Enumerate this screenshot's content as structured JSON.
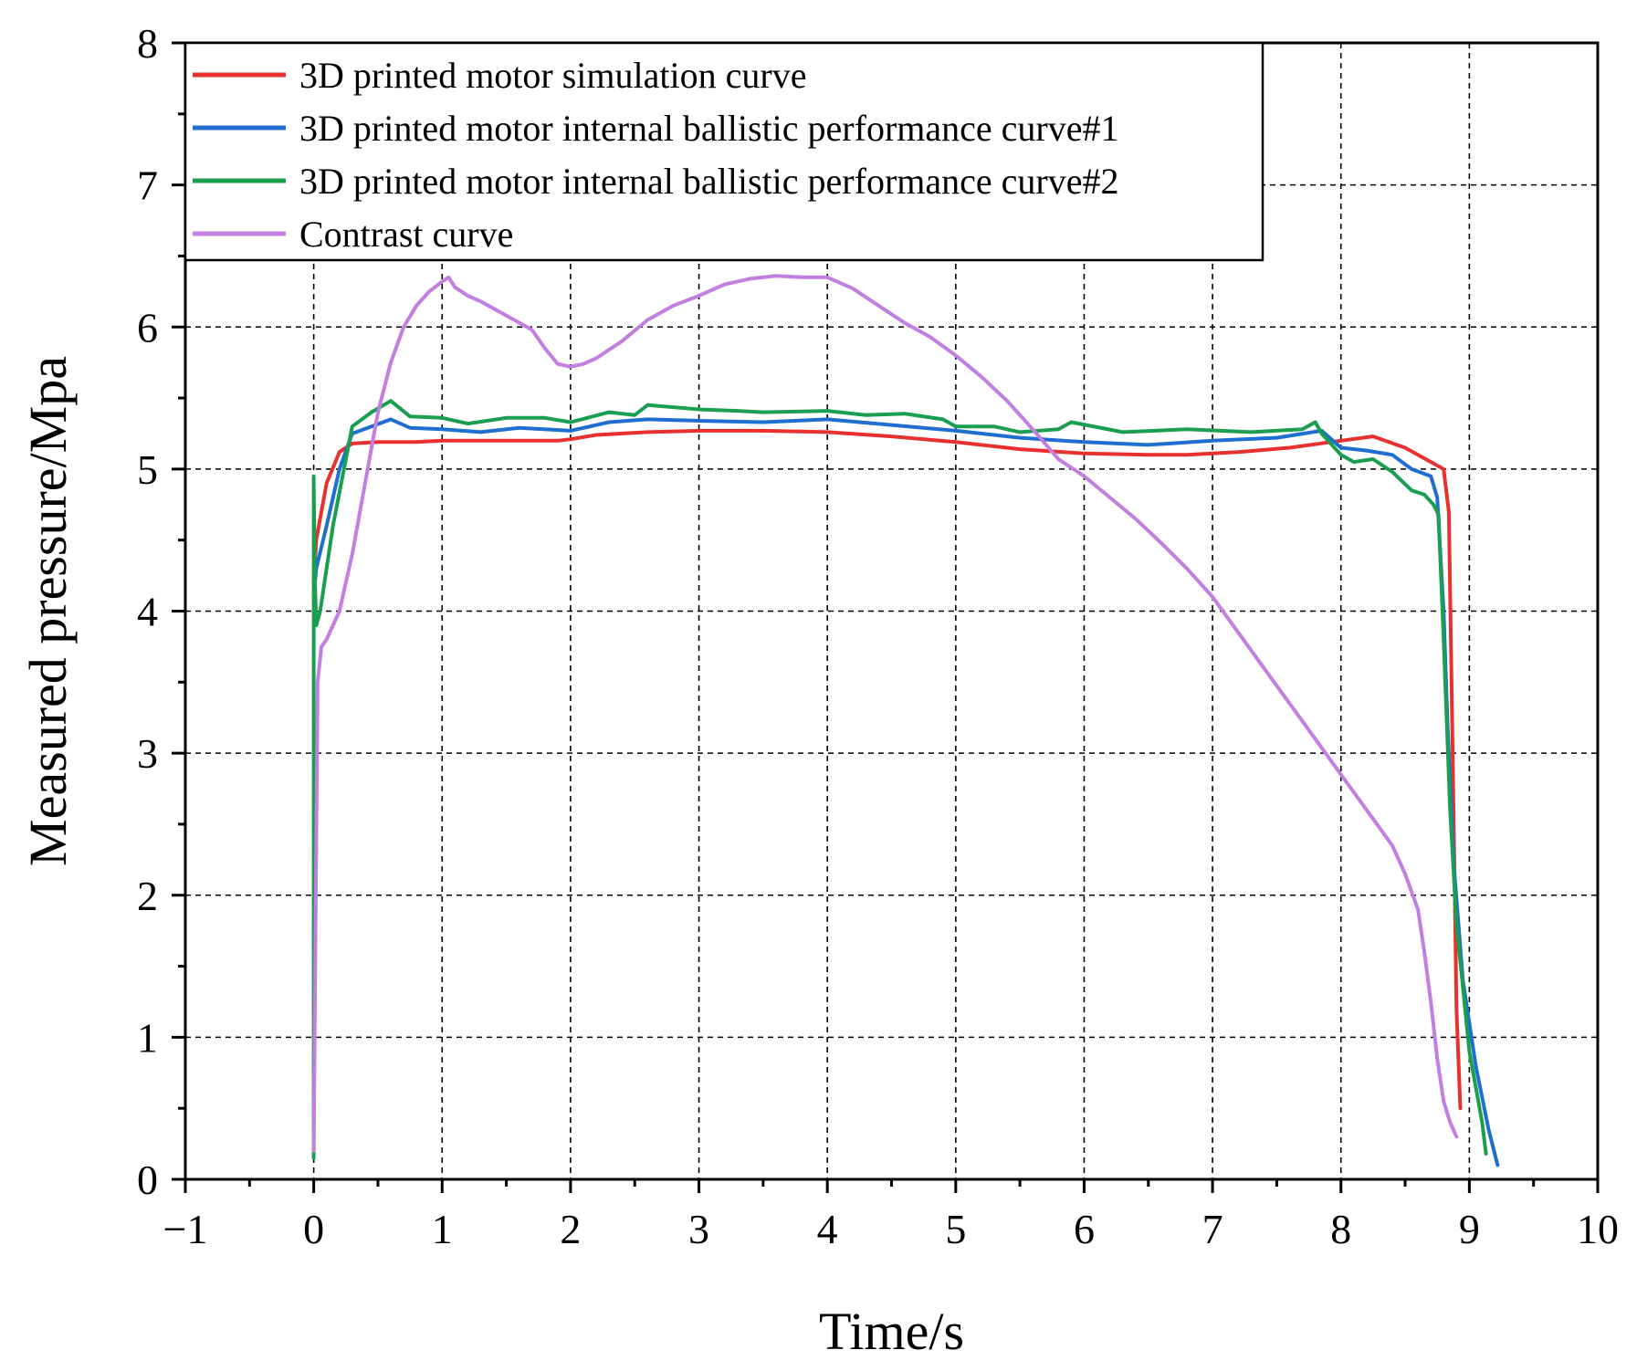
{
  "chart_data": {
    "type": "line",
    "title": "",
    "xlabel": "Time/s",
    "ylabel": "Measured pressure/Mpa",
    "xlim": [
      -1,
      10
    ],
    "ylim": [
      0,
      8
    ],
    "x_ticks": [
      -1,
      0,
      1,
      2,
      3,
      4,
      5,
      6,
      7,
      8,
      9,
      10
    ],
    "x_tick_labels": [
      "−1",
      "0",
      "1",
      "2",
      "3",
      "4",
      "5",
      "6",
      "7",
      "8",
      "9",
      "10"
    ],
    "y_ticks": [
      0,
      1,
      2,
      3,
      4,
      5,
      6,
      7,
      8
    ],
    "y_tick_labels": [
      "0",
      "1",
      "2",
      "3",
      "4",
      "5",
      "6",
      "7",
      "8"
    ],
    "grid": true,
    "legend_position": "top-left",
    "series": [
      {
        "name": "3D printed motor simulation curve",
        "color": "#e8312f",
        "x": [
          0,
          0.02,
          0.1,
          0.2,
          0.3,
          0.5,
          0.8,
          1.0,
          1.5,
          1.9,
          2.0,
          2.2,
          2.6,
          3.0,
          3.5,
          4.0,
          4.5,
          5.0,
          5.5,
          6.0,
          6.5,
          6.8,
          7.2,
          7.6,
          8.0,
          8.25,
          8.5,
          8.7,
          8.8,
          8.84,
          8.87,
          8.9,
          8.93
        ],
        "y": [
          4.2,
          4.5,
          4.9,
          5.12,
          5.18,
          5.19,
          5.19,
          5.2,
          5.2,
          5.2,
          5.21,
          5.24,
          5.26,
          5.27,
          5.27,
          5.26,
          5.23,
          5.19,
          5.14,
          5.11,
          5.1,
          5.1,
          5.12,
          5.15,
          5.2,
          5.23,
          5.15,
          5.05,
          5.0,
          4.7,
          3.0,
          1.2,
          0.5
        ]
      },
      {
        "name": "3D printed motor internal ballistic performance curve#1",
        "color": "#1f6fd1",
        "x": [
          0,
          0.02,
          0.1,
          0.2,
          0.3,
          0.45,
          0.6,
          0.75,
          1.0,
          1.3,
          1.6,
          2.0,
          2.3,
          2.6,
          3.0,
          3.5,
          4.0,
          4.5,
          5.0,
          5.5,
          6.0,
          6.5,
          7.0,
          7.5,
          7.85,
          8.0,
          8.2,
          8.4,
          8.55,
          8.7,
          8.75,
          8.8,
          8.83,
          8.88,
          8.95,
          9.05,
          9.15,
          9.22
        ],
        "y": [
          4.1,
          4.3,
          4.6,
          5.0,
          5.25,
          5.3,
          5.35,
          5.29,
          5.28,
          5.26,
          5.29,
          5.27,
          5.33,
          5.35,
          5.34,
          5.33,
          5.35,
          5.31,
          5.27,
          5.22,
          5.19,
          5.17,
          5.2,
          5.22,
          5.27,
          5.15,
          5.13,
          5.1,
          5.0,
          4.95,
          4.8,
          4.0,
          3.2,
          2.2,
          1.4,
          0.8,
          0.35,
          0.1
        ]
      },
      {
        "name": "3D printed motor internal ballistic performance curve#2",
        "color": "#1a9e4f",
        "x": [
          0,
          0.0,
          0.0,
          0.01,
          0.02,
          0.05,
          0.15,
          0.3,
          0.45,
          0.6,
          0.75,
          1.0,
          1.2,
          1.5,
          1.8,
          2.0,
          2.3,
          2.5,
          2.6,
          3.0,
          3.3,
          3.5,
          4.0,
          4.3,
          4.6,
          4.9,
          5.0,
          5.3,
          5.5,
          5.8,
          5.9,
          6.3,
          6.8,
          7.3,
          7.7,
          7.8,
          7.85,
          8.0,
          8.1,
          8.25,
          8.4,
          8.55,
          8.65,
          8.72,
          8.76,
          8.8,
          8.85,
          8.9,
          9.0,
          9.1,
          9.13
        ],
        "y": [
          0.15,
          4.95,
          4.9,
          4.2,
          3.9,
          4.0,
          4.6,
          5.3,
          5.4,
          5.48,
          5.37,
          5.36,
          5.32,
          5.36,
          5.36,
          5.33,
          5.4,
          5.38,
          5.45,
          5.42,
          5.41,
          5.4,
          5.41,
          5.38,
          5.39,
          5.35,
          5.3,
          5.3,
          5.26,
          5.28,
          5.33,
          5.26,
          5.28,
          5.26,
          5.28,
          5.33,
          5.25,
          5.1,
          5.05,
          5.07,
          4.98,
          4.85,
          4.82,
          4.75,
          4.68,
          3.8,
          2.6,
          1.8,
          0.9,
          0.4,
          0.18
        ]
      },
      {
        "name": "Contrast curve",
        "color": "#c27fe0",
        "x": [
          0,
          0.03,
          0.06,
          0.1,
          0.2,
          0.3,
          0.4,
          0.5,
          0.6,
          0.7,
          0.8,
          0.9,
          1.0,
          1.05,
          1.1,
          1.2,
          1.3,
          1.5,
          1.7,
          1.8,
          1.9,
          2.0,
          2.1,
          2.2,
          2.4,
          2.6,
          2.8,
          3.0,
          3.2,
          3.4,
          3.6,
          3.8,
          4.0,
          4.2,
          4.4,
          4.6,
          4.8,
          5.0,
          5.2,
          5.4,
          5.6,
          5.8,
          6.0,
          6.2,
          6.4,
          6.6,
          6.8,
          7.0,
          7.2,
          7.4,
          7.6,
          7.8,
          8.0,
          8.2,
          8.4,
          8.5,
          8.6,
          8.65,
          8.7,
          8.75,
          8.8,
          8.85,
          8.9
        ],
        "y": [
          0.2,
          3.5,
          3.75,
          3.8,
          4.0,
          4.4,
          4.9,
          5.4,
          5.75,
          6.0,
          6.15,
          6.25,
          6.32,
          6.35,
          6.28,
          6.22,
          6.18,
          6.08,
          5.98,
          5.85,
          5.74,
          5.72,
          5.74,
          5.78,
          5.9,
          6.05,
          6.15,
          6.22,
          6.3,
          6.34,
          6.36,
          6.35,
          6.35,
          6.27,
          6.15,
          6.03,
          5.93,
          5.8,
          5.65,
          5.48,
          5.28,
          5.07,
          4.95,
          4.8,
          4.65,
          4.48,
          4.3,
          4.1,
          3.85,
          3.6,
          3.35,
          3.1,
          2.85,
          2.6,
          2.35,
          2.15,
          1.9,
          1.6,
          1.25,
          0.85,
          0.55,
          0.4,
          0.3
        ]
      }
    ]
  }
}
